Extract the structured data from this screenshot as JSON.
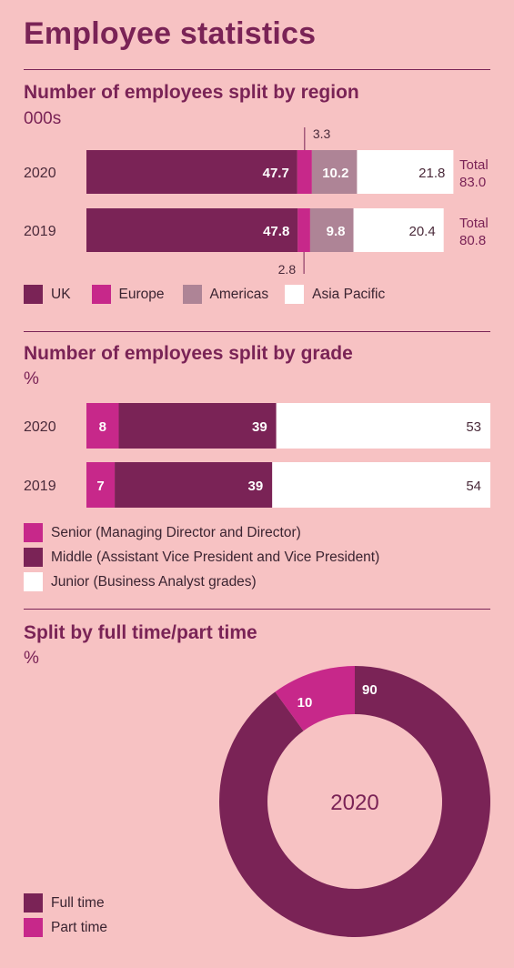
{
  "title": "Employee statistics",
  "colors": {
    "background": "#f7c2c3",
    "uk": "#7a2356",
    "europe": "#c7288a",
    "americas": "#ae8496",
    "asia_pacific": "#ffffff",
    "senior": "#c7288a",
    "middle": "#7a2356",
    "junior": "#ffffff",
    "full_time": "#7a2356",
    "part_time": "#c7288a"
  },
  "chart_data": [
    {
      "type": "bar",
      "orientation": "horizontal",
      "stacked": true,
      "title": "Number of employees split by region",
      "unit": "000s",
      "categories": [
        "2020",
        "2019"
      ],
      "series": [
        {
          "name": "UK",
          "values": [
            47.7,
            47.8
          ],
          "labels": [
            "47.7",
            "47.8"
          ]
        },
        {
          "name": "Europe",
          "values": [
            3.3,
            2.8
          ],
          "labels": [
            "3.3",
            "2.8"
          ]
        },
        {
          "name": "Americas",
          "values": [
            10.2,
            9.8
          ],
          "labels": [
            "10.2",
            "9.8"
          ]
        },
        {
          "name": "Asia Pacific",
          "values": [
            21.8,
            20.4
          ],
          "labels": [
            "21.8",
            "20.4"
          ]
        }
      ],
      "totals": [
        {
          "label": "Total",
          "value": "83.0"
        },
        {
          "label": "Total",
          "value": "80.8"
        }
      ]
    },
    {
      "type": "bar",
      "orientation": "horizontal",
      "stacked": true,
      "title": "Number of employees split by grade",
      "unit": "%",
      "categories": [
        "2020",
        "2019"
      ],
      "series": [
        {
          "name": "Senior (Managing Director and Director)",
          "values": [
            8,
            7
          ],
          "labels": [
            "8",
            "7"
          ]
        },
        {
          "name": "Middle (Assistant Vice President and Vice President)",
          "values": [
            39,
            39
          ],
          "labels": [
            "39",
            "39"
          ]
        },
        {
          "name": "Junior (Business Analyst grades)",
          "values": [
            53,
            54
          ],
          "labels": [
            "53",
            "54"
          ]
        }
      ]
    },
    {
      "type": "pie",
      "donut": true,
      "title": "Split by full time/part time",
      "unit": "%",
      "center_label": "2020",
      "slices": [
        {
          "name": "Full time",
          "value": 90,
          "label": "90"
        },
        {
          "name": "Part time",
          "value": 10,
          "label": "10"
        }
      ]
    }
  ]
}
